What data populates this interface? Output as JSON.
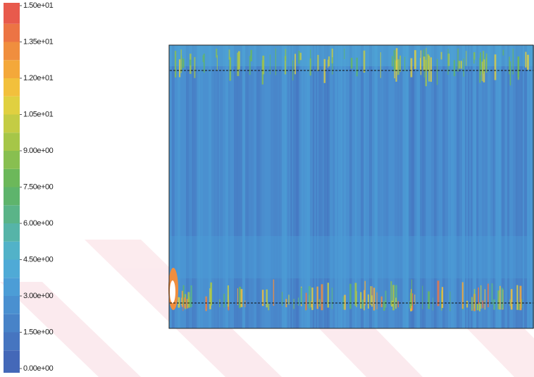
{
  "chart_data": {
    "type": "contour",
    "clim": [
      0,
      15
    ],
    "ticks": [
      {
        "value": 0,
        "label": "0.00e+00"
      },
      {
        "value": 1.5,
        "label": "1.50e+00"
      },
      {
        "value": 3,
        "label": "3.00e+00"
      },
      {
        "value": 4.5,
        "label": "4.50e+00"
      },
      {
        "value": 6,
        "label": "6.00e+00"
      },
      {
        "value": 7.5,
        "label": "7.50e+00"
      },
      {
        "value": 9,
        "label": "9.00e+00"
      },
      {
        "value": 10.5,
        "label": "1.05e+01"
      },
      {
        "value": 12,
        "label": "1.20e+01"
      },
      {
        "value": 13.5,
        "label": "1.35e+01"
      },
      {
        "value": 15,
        "label": "1.50e+01"
      }
    ],
    "colors": [
      "#4468b8",
      "#4675c0",
      "#4883c8",
      "#4a90d0",
      "#4c9dd6",
      "#4faad6",
      "#52b2c8",
      "#56b4a8",
      "#5ab488",
      "#5eb46c",
      "#6cb85a",
      "#88bf50",
      "#a6c648",
      "#c4cc44",
      "#e0d040",
      "#f2c03c",
      "#f4a83a",
      "#f08e3e",
      "#ec7444",
      "#e85a4c"
    ]
  }
}
